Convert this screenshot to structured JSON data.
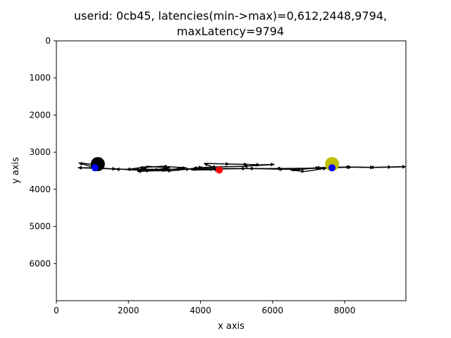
{
  "chart_data": {
    "type": "scatter",
    "title_lines": [
      "userid: 0cb45, latencies(min->max)=0,612,2448,9794,",
      "maxLatency=9794"
    ],
    "xlabel": "x axis",
    "ylabel": "y axis",
    "xlim": [
      0,
      9700
    ],
    "ylim": [
      7000,
      0
    ],
    "y_inverted": true,
    "xticks": [
      0,
      2000,
      4000,
      6000,
      8000
    ],
    "yticks": [
      0,
      1000,
      2000,
      3000,
      4000,
      5000,
      6000
    ],
    "grid": false,
    "legend": "none",
    "path_color": "#000000",
    "path": [
      [
        1150,
        3320
      ],
      [
        1050,
        3420
      ],
      [
        600,
        3420
      ],
      [
        1650,
        3450
      ],
      [
        2350,
        3480
      ],
      [
        2500,
        3380
      ],
      [
        3150,
        3420
      ],
      [
        2700,
        3480
      ],
      [
        2250,
        3520
      ],
      [
        3050,
        3480
      ],
      [
        3600,
        3420
      ],
      [
        2950,
        3380
      ],
      [
        2300,
        3420
      ],
      [
        1950,
        3470
      ],
      [
        2600,
        3500
      ],
      [
        3200,
        3500
      ],
      [
        3700,
        3450
      ],
      [
        4050,
        3400
      ],
      [
        3750,
        3480
      ],
      [
        4500,
        3470
      ],
      [
        4100,
        3300
      ],
      [
        4800,
        3320
      ],
      [
        5300,
        3330
      ],
      [
        5650,
        3340
      ],
      [
        6050,
        3330
      ],
      [
        5200,
        3380
      ],
      [
        4300,
        3400
      ],
      [
        3800,
        3430
      ],
      [
        4600,
        3440
      ],
      [
        5500,
        3440
      ],
      [
        6300,
        3460
      ],
      [
        6800,
        3460
      ],
      [
        7300,
        3420
      ],
      [
        7650,
        3420
      ],
      [
        8200,
        3400
      ],
      [
        8800,
        3410
      ],
      [
        9300,
        3400
      ],
      [
        9700,
        3390
      ],
      [
        8700,
        3410
      ],
      [
        8000,
        3400
      ],
      [
        7200,
        3420
      ],
      [
        6500,
        3480
      ],
      [
        6900,
        3520
      ],
      [
        7500,
        3430
      ],
      [
        6100,
        3440
      ],
      [
        5100,
        3440
      ],
      [
        4200,
        3460
      ],
      [
        3300,
        3460
      ],
      [
        2400,
        3460
      ],
      [
        1650,
        3460
      ],
      [
        1100,
        3420
      ],
      [
        620,
        3290
      ],
      [
        1200,
        3350
      ]
    ],
    "markers": [
      {
        "role": "start",
        "x": 1150,
        "y": 3320,
        "color": "#000000",
        "size": "large"
      },
      {
        "role": "end",
        "x": 7650,
        "y": 3320,
        "color": "#bfbf00",
        "size": "large"
      },
      {
        "role": "point",
        "x": 4520,
        "y": 3480,
        "color": "#ff0000",
        "size": "small"
      },
      {
        "role": "point",
        "x": 1070,
        "y": 3420,
        "color": "#0000ff",
        "size": "small"
      },
      {
        "role": "point",
        "x": 7650,
        "y": 3420,
        "color": "#0000ff",
        "size": "small"
      }
    ]
  }
}
